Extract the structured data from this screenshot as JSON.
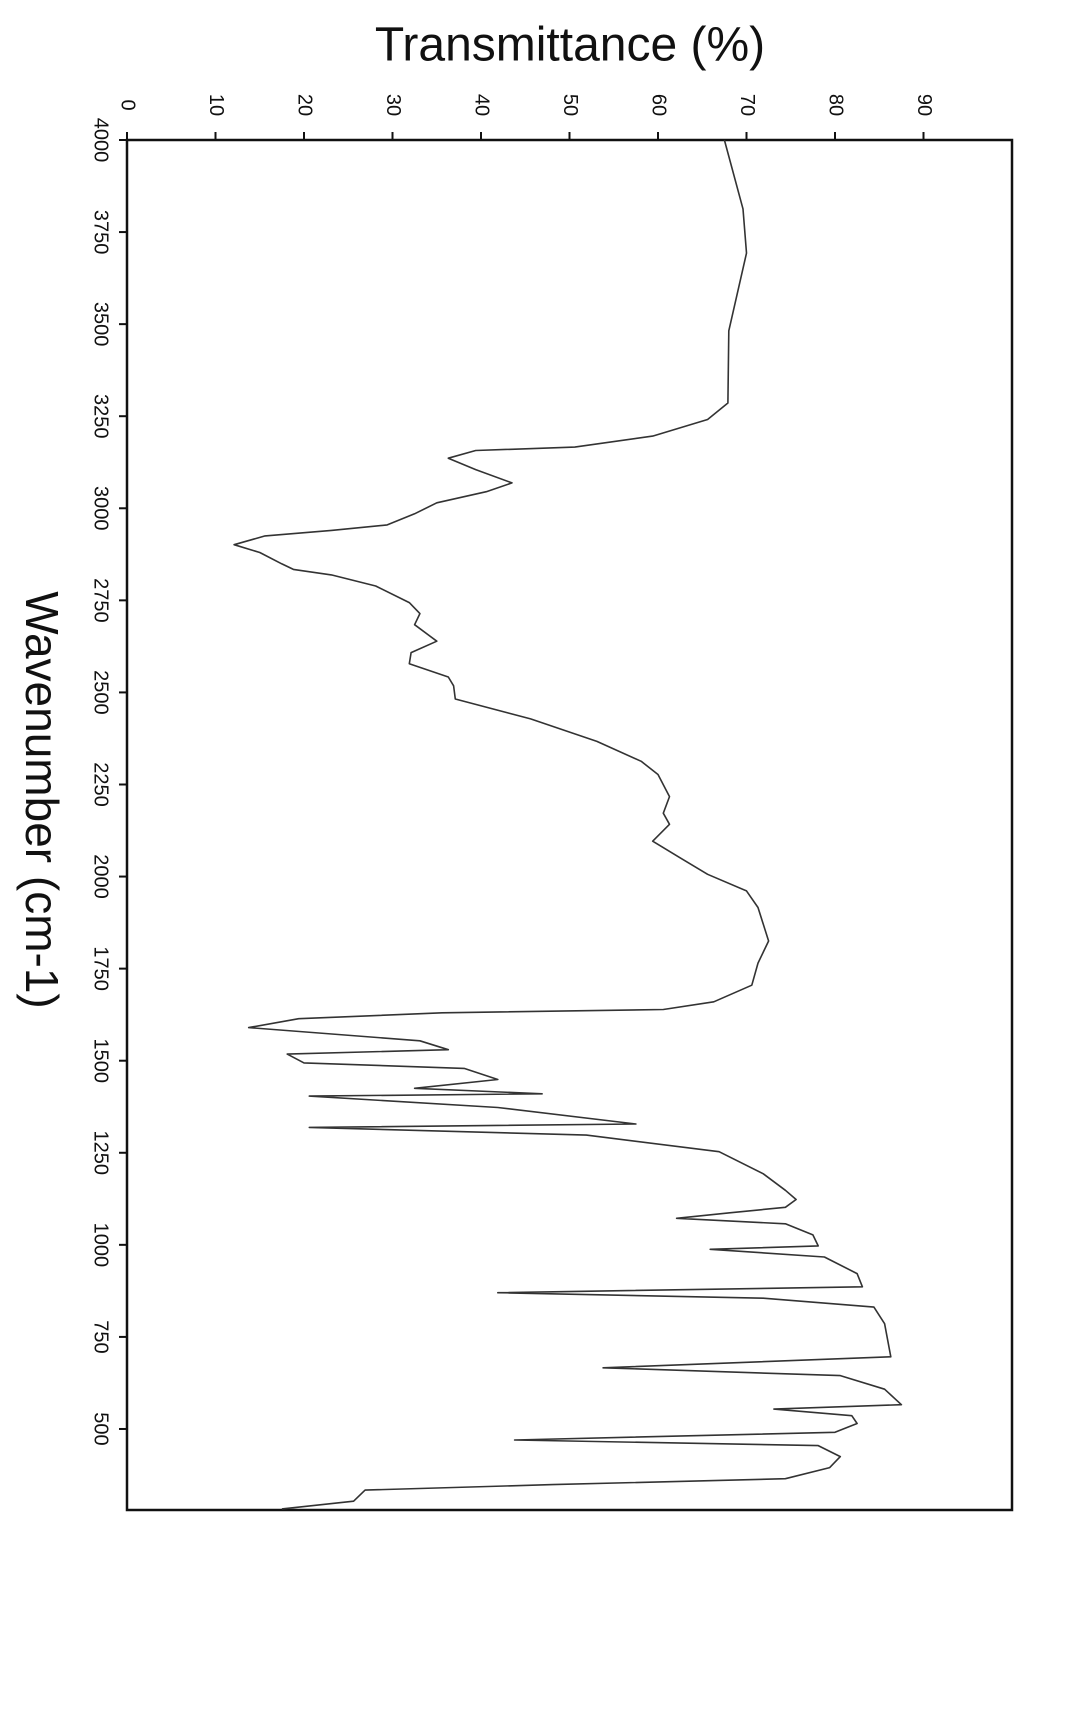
{
  "chart_data": {
    "type": "line",
    "title": "Transmittance (%)",
    "x_label": "Wavenumber (cm-1)",
    "xlim": [
      4000,
      280
    ],
    "xticks": [
      4000,
      3750,
      3500,
      3250,
      3000,
      2750,
      2500,
      2250,
      2000,
      1750,
      1500,
      1250,
      1000,
      750,
      500
    ],
    "ylim": [
      0,
      100
    ],
    "yticks": [
      0,
      10,
      20,
      30,
      40,
      50,
      60,
      70,
      80,
      90
    ],
    "color": "#333333",
    "x": [
      4000,
      3813,
      3693,
      3482,
      3286,
      3241,
      3196,
      3166,
      3157,
      3136,
      3105,
      3069,
      3045,
      3015,
      2985,
      2955,
      2940,
      2925,
      2901,
      2880,
      2849,
      2834,
      2819,
      2789,
      2744,
      2714,
      2684,
      2639,
      2608,
      2578,
      2542,
      2518,
      2482,
      2428,
      2367,
      2313,
      2277,
      2217,
      2172,
      2142,
      2096,
      2051,
      2006,
      1961,
      1916,
      1825,
      1765,
      1705,
      1660,
      1639,
      1630,
      1614,
      1590,
      1554,
      1530,
      1518,
      1494,
      1479,
      1449,
      1425,
      1410,
      1404,
      1373,
      1328,
      1319,
      1298,
      1253,
      1193,
      1148,
      1123,
      1102,
      1087,
      1072,
      1057,
      1027,
      997,
      988,
      967,
      922,
      886,
      870,
      855,
      831,
      786,
      696,
      666,
      645,
      608,
      566,
      554,
      536,
      515,
      491,
      470,
      455,
      425,
      395,
      365,
      349,
      334,
      304,
      283
    ],
    "values": [
      67.5,
      69.6,
      70,
      68,
      67.9,
      65.6,
      59.4,
      50.6,
      39.4,
      36.3,
      39.4,
      43.5,
      40.6,
      35,
      32.5,
      29.4,
      23.1,
      15.6,
      12.1,
      15,
      17.5,
      18.8,
      23.1,
      28.1,
      31.9,
      33.1,
      32.5,
      35,
      32.1,
      31.9,
      36.3,
      36.9,
      37.1,
      45.6,
      53.1,
      58.1,
      60,
      61.3,
      60.6,
      61.3,
      59.4,
      62.5,
      65.6,
      70,
      71.3,
      72.5,
      71.3,
      70.6,
      66.3,
      60.6,
      35.6,
      19.4,
      13.75,
      33.1,
      36.3,
      18.1,
      20,
      38.1,
      41.9,
      32.5,
      46.9,
      20.6,
      41.9,
      57.5,
      20.6,
      51.9,
      66.9,
      71.9,
      74.4,
      75.6,
      74.4,
      68.1,
      62.1,
      74.4,
      77.5,
      78.1,
      65.9,
      78.8,
      82.5,
      83.1,
      41.9,
      71.9,
      84.4,
      85.6,
      86.3,
      53.8,
      80.6,
      85.6,
      87.5,
      73.1,
      81.9,
      82.5,
      80,
      43.8,
      78.1,
      80.6,
      79.4,
      74.4,
      48.1,
      26.9,
      25.6,
      17.5
    ]
  }
}
